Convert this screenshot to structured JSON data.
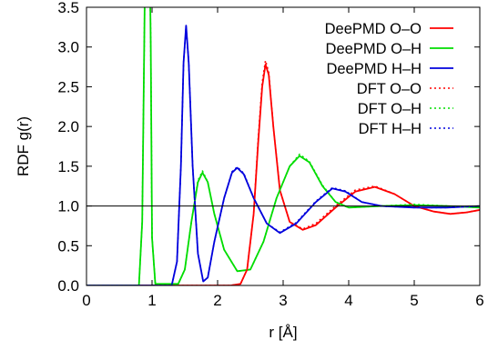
{
  "chart_data": {
    "type": "line",
    "title": "",
    "xlabel": "r [Å]",
    "ylabel": "RDF g(r)",
    "xlim": [
      0,
      6
    ],
    "ylim": [
      0,
      3.5
    ],
    "x_ticks": [
      "0",
      "1",
      "2",
      "3",
      "4",
      "5",
      "6"
    ],
    "y_ticks": [
      "0.0",
      "0.5",
      "1.0",
      "1.5",
      "2.0",
      "2.5",
      "3.0",
      "3.5"
    ],
    "grid": false,
    "legend_position": "top-right",
    "reference_line_y": 1.0,
    "series": [
      {
        "name": "DeePMD O–O",
        "color": "#ff0000",
        "style": "solid",
        "points": [
          [
            0,
            0
          ],
          [
            2.2,
            0
          ],
          [
            2.35,
            0.02
          ],
          [
            2.45,
            0.2
          ],
          [
            2.55,
            0.9
          ],
          [
            2.62,
            1.8
          ],
          [
            2.68,
            2.5
          ],
          [
            2.73,
            2.78
          ],
          [
            2.78,
            2.65
          ],
          [
            2.85,
            2.0
          ],
          [
            2.95,
            1.2
          ],
          [
            3.1,
            0.8
          ],
          [
            3.3,
            0.7
          ],
          [
            3.5,
            0.76
          ],
          [
            3.8,
            0.98
          ],
          [
            4.1,
            1.18
          ],
          [
            4.4,
            1.24
          ],
          [
            4.7,
            1.15
          ],
          [
            5.0,
            1.0
          ],
          [
            5.3,
            0.93
          ],
          [
            5.55,
            0.9
          ],
          [
            5.8,
            0.92
          ],
          [
            6.0,
            0.95
          ]
        ]
      },
      {
        "name": "DeePMD O–H",
        "color": "#00dd00",
        "style": "solid",
        "points": [
          [
            0,
            0
          ],
          [
            0.8,
            0
          ],
          [
            0.85,
            0.8
          ],
          [
            0.88,
            3.0
          ],
          [
            0.9,
            4.5
          ],
          [
            0.96,
            4.5
          ],
          [
            0.98,
            3.0
          ],
          [
            1.0,
            0.6
          ],
          [
            1.05,
            0.02
          ],
          [
            1.4,
            0.02
          ],
          [
            1.5,
            0.2
          ],
          [
            1.6,
            0.8
          ],
          [
            1.7,
            1.3
          ],
          [
            1.77,
            1.42
          ],
          [
            1.85,
            1.3
          ],
          [
            1.95,
            0.9
          ],
          [
            2.1,
            0.45
          ],
          [
            2.3,
            0.18
          ],
          [
            2.5,
            0.2
          ],
          [
            2.7,
            0.55
          ],
          [
            2.9,
            1.1
          ],
          [
            3.1,
            1.5
          ],
          [
            3.25,
            1.63
          ],
          [
            3.4,
            1.55
          ],
          [
            3.6,
            1.25
          ],
          [
            3.8,
            1.05
          ],
          [
            4.0,
            0.98
          ],
          [
            4.5,
            1.0
          ],
          [
            5.0,
            1.01
          ],
          [
            5.5,
            1.0
          ],
          [
            6.0,
            0.98
          ]
        ]
      },
      {
        "name": "DeePMD H–H",
        "color": "#0000dd",
        "style": "solid",
        "points": [
          [
            0,
            0
          ],
          [
            1.3,
            0
          ],
          [
            1.38,
            0.3
          ],
          [
            1.44,
            1.5
          ],
          [
            1.48,
            2.8
          ],
          [
            1.52,
            3.27
          ],
          [
            1.56,
            2.8
          ],
          [
            1.62,
            1.5
          ],
          [
            1.7,
            0.4
          ],
          [
            1.78,
            0.05
          ],
          [
            1.85,
            0.1
          ],
          [
            1.95,
            0.55
          ],
          [
            2.1,
            1.1
          ],
          [
            2.22,
            1.42
          ],
          [
            2.3,
            1.48
          ],
          [
            2.4,
            1.4
          ],
          [
            2.55,
            1.1
          ],
          [
            2.75,
            0.78
          ],
          [
            2.95,
            0.66
          ],
          [
            3.2,
            0.78
          ],
          [
            3.5,
            1.05
          ],
          [
            3.75,
            1.22
          ],
          [
            3.95,
            1.18
          ],
          [
            4.2,
            1.05
          ],
          [
            4.5,
            1.0
          ],
          [
            5.0,
            0.98
          ],
          [
            5.5,
            0.98
          ],
          [
            6.0,
            1.0
          ]
        ]
      },
      {
        "name": "DFT O–O",
        "color": "#ff0000",
        "style": "dotted",
        "points": [
          [
            0,
            0
          ],
          [
            2.2,
            0
          ],
          [
            2.35,
            0.02
          ],
          [
            2.45,
            0.2
          ],
          [
            2.55,
            0.9
          ],
          [
            2.62,
            1.85
          ],
          [
            2.68,
            2.55
          ],
          [
            2.73,
            2.83
          ],
          [
            2.78,
            2.68
          ],
          [
            2.85,
            2.0
          ],
          [
            2.95,
            1.2
          ],
          [
            3.1,
            0.8
          ],
          [
            3.3,
            0.71
          ],
          [
            3.5,
            0.78
          ],
          [
            3.8,
            1.0
          ],
          [
            4.1,
            1.2
          ],
          [
            4.4,
            1.25
          ],
          [
            4.7,
            1.15
          ],
          [
            5.0,
            1.0
          ],
          [
            5.3,
            0.93
          ],
          [
            5.55,
            0.9
          ],
          [
            5.8,
            0.92
          ],
          [
            6.0,
            0.95
          ]
        ]
      },
      {
        "name": "DFT O–H",
        "color": "#00dd00",
        "style": "dotted",
        "points": [
          [
            0,
            0
          ],
          [
            0.8,
            0
          ],
          [
            0.85,
            0.8
          ],
          [
            0.88,
            3.0
          ],
          [
            0.9,
            4.5
          ],
          [
            0.96,
            4.5
          ],
          [
            0.98,
            3.0
          ],
          [
            1.0,
            0.6
          ],
          [
            1.05,
            0.02
          ],
          [
            1.4,
            0.02
          ],
          [
            1.5,
            0.2
          ],
          [
            1.6,
            0.8
          ],
          [
            1.7,
            1.32
          ],
          [
            1.77,
            1.44
          ],
          [
            1.85,
            1.3
          ],
          [
            1.95,
            0.9
          ],
          [
            2.1,
            0.45
          ],
          [
            2.3,
            0.18
          ],
          [
            2.5,
            0.2
          ],
          [
            2.7,
            0.55
          ],
          [
            2.9,
            1.1
          ],
          [
            3.1,
            1.5
          ],
          [
            3.25,
            1.65
          ],
          [
            3.4,
            1.56
          ],
          [
            3.6,
            1.26
          ],
          [
            3.8,
            1.05
          ],
          [
            4.0,
            0.98
          ],
          [
            4.5,
            1.0
          ],
          [
            5.0,
            1.02
          ],
          [
            5.5,
            1.0
          ],
          [
            6.0,
            0.98
          ]
        ]
      },
      {
        "name": "DFT H–H",
        "color": "#0000dd",
        "style": "dotted",
        "points": [
          [
            0,
            0
          ],
          [
            1.3,
            0
          ],
          [
            1.38,
            0.3
          ],
          [
            1.44,
            1.5
          ],
          [
            1.48,
            2.8
          ],
          [
            1.52,
            3.25
          ],
          [
            1.56,
            2.8
          ],
          [
            1.62,
            1.5
          ],
          [
            1.7,
            0.4
          ],
          [
            1.78,
            0.05
          ],
          [
            1.85,
            0.1
          ],
          [
            1.95,
            0.55
          ],
          [
            2.1,
            1.1
          ],
          [
            2.22,
            1.43
          ],
          [
            2.3,
            1.49
          ],
          [
            2.4,
            1.41
          ],
          [
            2.55,
            1.1
          ],
          [
            2.75,
            0.78
          ],
          [
            2.95,
            0.67
          ],
          [
            3.2,
            0.79
          ],
          [
            3.5,
            1.06
          ],
          [
            3.75,
            1.23
          ],
          [
            3.95,
            1.19
          ],
          [
            4.2,
            1.05
          ],
          [
            4.5,
            1.0
          ],
          [
            5.0,
            0.98
          ],
          [
            5.5,
            0.98
          ],
          [
            6.0,
            1.0
          ]
        ]
      }
    ]
  }
}
